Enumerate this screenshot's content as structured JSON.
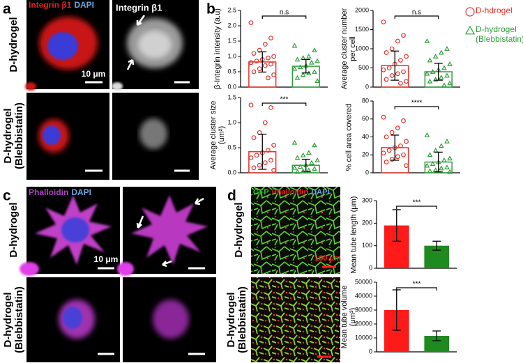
{
  "panel_labels": [
    "a",
    "b",
    "c",
    "d"
  ],
  "panel_a": {
    "channels": [
      "Integrin β1",
      "DAPI"
    ],
    "gray_label": "Integrin β1",
    "rows": [
      "D-hydrogel",
      "D-hydrogel (Blebbistatin)"
    ],
    "scale": "10 μm"
  },
  "panel_c": {
    "channels": [
      "Phalloidin",
      "DAPI"
    ],
    "rows": [
      "D-hydrogel",
      "D-hydrogel (Blebbistatin)"
    ],
    "scale": "10 μm"
  },
  "panel_d": {
    "channels": [
      "GFP",
      "Phalloidin",
      "DAPI"
    ],
    "rows": [
      "D-hydrogel",
      "D-hydrogel (Blebbistatin)"
    ],
    "scale": "100 μm"
  },
  "legend": [
    {
      "name": "D-hdrogel",
      "color": "#e8322a",
      "marker": "circle"
    },
    {
      "name": "D-hydrogel (Blebbistatin)",
      "color": "#2e9e3a",
      "marker": "triangle"
    }
  ],
  "chart_data": [
    {
      "type": "bar",
      "style": "hollow",
      "ylabel": "β-Integrin intensity (a.u)",
      "values": [
        0.82,
        0.68
      ],
      "errors": [
        0.33,
        0.22
      ],
      "colors": [
        "#e8322a",
        "#2e9e3a"
      ],
      "points": [
        [
          2.1,
          1.6,
          1.4,
          1.2,
          1.1,
          1.0,
          0.95,
          0.9,
          0.85,
          0.8,
          0.75,
          0.7,
          0.6,
          0.5,
          0.4,
          0.3
        ],
        [
          1.35,
          1.2,
          1.0,
          0.95,
          0.9,
          0.85,
          0.8,
          0.7,
          0.65,
          0.6,
          0.5,
          0.45,
          0.4,
          0.3,
          0.2
        ]
      ],
      "annotation": "n.s",
      "ylim": [
        0,
        2.5
      ],
      "yticks": [
        {
          "value": 0,
          "label": "0.0"
        },
        0.5,
        {
          "value": 1,
          "label": "1.0"
        },
        1.5,
        {
          "value": 2,
          "label": "2.0"
        },
        2.5
      ]
    },
    {
      "type": "bar",
      "style": "hollow",
      "ylabel": "Average cluster number per cell",
      "values": [
        560,
        400
      ],
      "errors": [
        380,
        220
      ],
      "colors": [
        "#e8322a",
        "#2e9e3a"
      ],
      "points": [
        [
          1700,
          1350,
          1200,
          1000,
          900,
          800,
          700,
          600,
          500,
          450,
          400,
          350,
          300,
          200,
          150,
          100
        ],
        [
          1200,
          1000,
          900,
          800,
          700,
          600,
          500,
          450,
          400,
          350,
          300,
          250,
          200,
          150,
          100,
          50
        ]
      ],
      "annotation": "n.s",
      "ylim": [
        0,
        2000
      ],
      "yticks": [
        0,
        500,
        1000,
        1500,
        2000
      ]
    },
    {
      "type": "bar",
      "style": "hollow",
      "ylabel": "Average cluster size (um²)",
      "values": [
        0.42,
        0.15
      ],
      "errors": [
        0.35,
        0.12
      ],
      "colors": [
        "#e8322a",
        "#2e9e3a"
      ],
      "points": [
        [
          1.35,
          1.3,
          1.0,
          0.8,
          0.7,
          0.55,
          0.45,
          0.4,
          0.35,
          0.3,
          0.25,
          0.2,
          0.15,
          0.1,
          0.05
        ],
        [
          0.6,
          0.55,
          0.4,
          0.35,
          0.3,
          0.25,
          0.2,
          0.15,
          0.12,
          0.1,
          0.08,
          0.05,
          0.03,
          0.02
        ]
      ],
      "annotation": "***",
      "ylim": [
        0,
        1.5
      ],
      "yticks": [
        {
          "value": 0,
          "label": "0.0"
        },
        0.5,
        {
          "value": 1,
          "label": "1.0"
        },
        1.5
      ]
    },
    {
      "type": "bar",
      "style": "hollow",
      "ylabel": "% cell area covered",
      "values": [
        28,
        12
      ],
      "errors": [
        14,
        11
      ],
      "colors": [
        "#e8322a",
        "#2e9e3a"
      ],
      "points": [
        [
          62,
          58,
          50,
          45,
          40,
          35,
          30,
          28,
          25,
          22,
          20,
          18,
          15,
          12,
          8
        ],
        [
          42,
          35,
          30,
          25,
          20,
          16,
          14,
          12,
          10,
          8,
          6,
          5,
          3,
          2,
          1
        ]
      ],
      "annotation": "****",
      "ylim": [
        0,
        80
      ],
      "yticks": [
        0,
        20,
        40,
        60,
        80
      ]
    },
    {
      "type": "bar",
      "style": "solid",
      "ylabel": "Mean tube length (μm)",
      "values": [
        190,
        100
      ],
      "errors": [
        70,
        20
      ],
      "colors": [
        "#ff1a1a",
        "#1f8a1f"
      ],
      "annotation": "***",
      "ylim": [
        0,
        300
      ],
      "yticks": [
        0,
        100,
        200,
        300
      ]
    },
    {
      "type": "bar",
      "style": "solid",
      "ylabel": "Mean tube volume (μm³)",
      "values": [
        30000,
        11500
      ],
      "errors": [
        14500,
        3500
      ],
      "colors": [
        "#ff1a1a",
        "#1f8a1f"
      ],
      "annotation": "***",
      "ylim": [
        0,
        50000
      ],
      "yticks": [
        0,
        10000,
        20000,
        30000,
        40000,
        50000
      ]
    }
  ]
}
